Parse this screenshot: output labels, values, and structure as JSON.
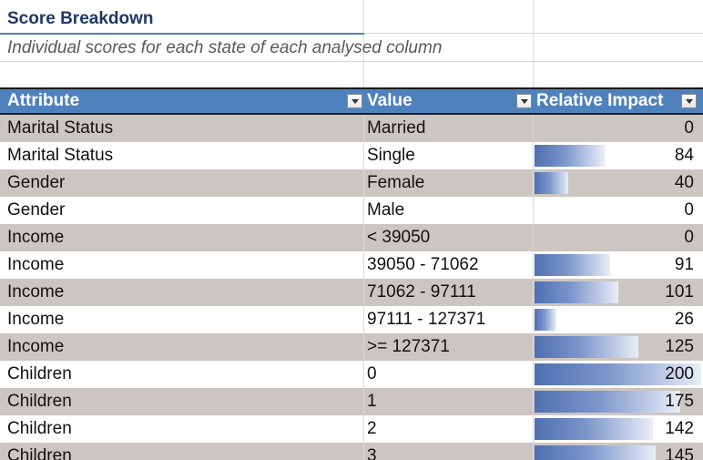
{
  "sheet": {
    "title": "Score Breakdown",
    "subtitle": "Individual scores for each state of each analysed column"
  },
  "table": {
    "headers": [
      "Attribute",
      "Value",
      "Relative Impact"
    ],
    "max_impact": 200,
    "rows": [
      {
        "attribute": "Marital Status",
        "value": "Married",
        "impact": 0
      },
      {
        "attribute": "Marital Status",
        "value": "Single",
        "impact": 84
      },
      {
        "attribute": "Gender",
        "value": "Female",
        "impact": 40
      },
      {
        "attribute": "Gender",
        "value": "Male",
        "impact": 0
      },
      {
        "attribute": "Income",
        "value": "< 39050",
        "impact": 0
      },
      {
        "attribute": "Income",
        "value": "39050 - 71062",
        "impact": 91
      },
      {
        "attribute": "Income",
        "value": "71062 - 97111",
        "impact": 101
      },
      {
        "attribute": "Income",
        "value": "97111 - 127371",
        "impact": 26
      },
      {
        "attribute": "Income",
        "value": ">= 127371",
        "impact": 125
      },
      {
        "attribute": "Children",
        "value": "0",
        "impact": 200
      },
      {
        "attribute": "Children",
        "value": "1",
        "impact": 175
      },
      {
        "attribute": "Children",
        "value": "2",
        "impact": 142
      },
      {
        "attribute": "Children",
        "value": "3",
        "impact": 145
      }
    ]
  }
}
